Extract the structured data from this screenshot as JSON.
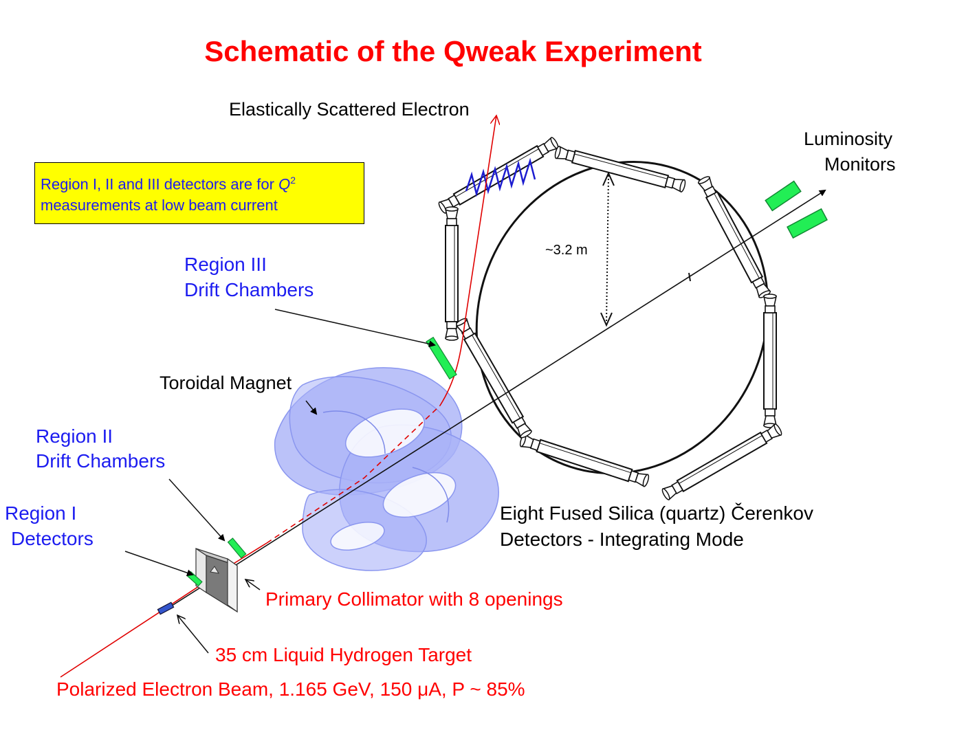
{
  "title": "Schematic of the Qweak Experiment",
  "colors": {
    "title": "#ff0000",
    "region_label": "#1c1cf0",
    "beam_label": "#ff0000",
    "note_background": "#ffff00",
    "note_text": "#1c1cf0",
    "detector_green": "#22ee55",
    "magnet_lavender": "#aab3f8",
    "spring_blue": "#1c1cd0",
    "track_red": "#e00000"
  },
  "note": {
    "line1_prefix": "Region I, II and III detectors are for ",
    "q_symbol": "Q",
    "q_exponent": "2",
    "line2": "measurements at low beam current"
  },
  "labels": {
    "scattered_electron": "Elastically Scattered Electron",
    "luminosity_line1": "Luminosity",
    "luminosity_line2": "Monitors",
    "distance": "~3.2 m",
    "region3_line1": "Region III",
    "region3_line2": "Drift Chambers",
    "toroidal_magnet": "Toroidal Magnet",
    "region2_line1": "Region II",
    "region2_line2": "Drift Chambers",
    "region1_line1": "Region I",
    "region1_line2": "Detectors",
    "cerenkov_line1": "Eight Fused Silica (quartz) Čerenkov",
    "cerenkov_line2": "Detectors -  Integrating Mode",
    "collimator": "Primary Collimator with 8 openings",
    "target": "35 cm Liquid Hydrogen Target",
    "beam": "Polarized Electron Beam, 1.165 GeV, 150 μA, P ~ 85%"
  }
}
